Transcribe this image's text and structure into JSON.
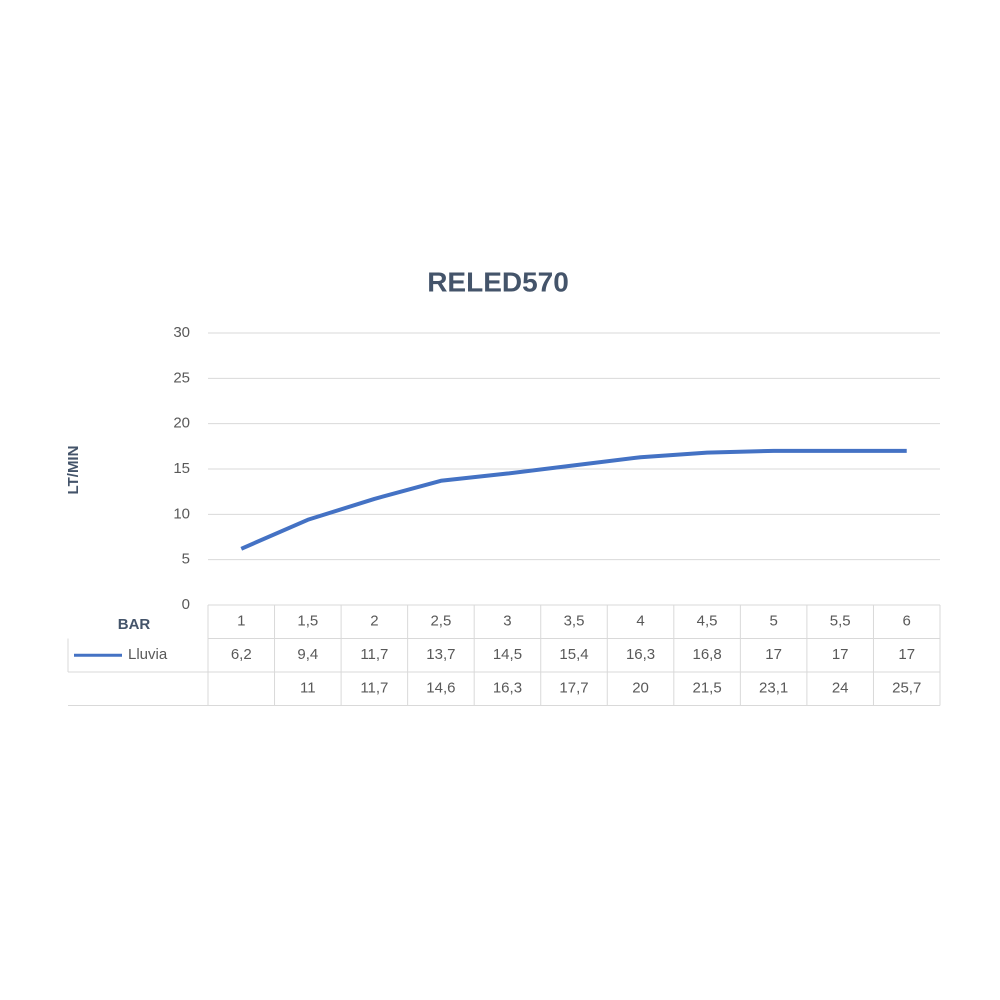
{
  "chart_data": {
    "type": "line",
    "title": "RELED570",
    "y_label": "LT/MIN",
    "x_label": "BAR",
    "categories": [
      "1",
      "1,5",
      "2",
      "2,5",
      "3",
      "3,5",
      "4",
      "4,5",
      "5",
      "5,5",
      "6"
    ],
    "series": [
      {
        "name": "Lluvia",
        "color": "#4472c4",
        "values": [
          6.2,
          9.4,
          11.7,
          13.7,
          14.5,
          15.4,
          16.3,
          16.8,
          17,
          17,
          17
        ],
        "value_labels": [
          "6,2",
          "9,4",
          "11,7",
          "13,7",
          "14,5",
          "15,4",
          "16,3",
          "16,8",
          "17",
          "17",
          "17"
        ]
      },
      {
        "values": [
          null,
          11,
          11.7,
          14.6,
          16.3,
          17.7,
          20,
          21.5,
          23.1,
          24,
          25.7
        ],
        "value_labels": [
          null,
          "11",
          "11,7",
          "14,6",
          "16,3",
          "17,7",
          "20",
          "21,5",
          "23,1",
          "24",
          "25,7"
        ]
      }
    ],
    "ylim": [
      0,
      30
    ],
    "yticks": [
      0,
      5,
      10,
      15,
      20,
      25,
      30
    ],
    "grid": true,
    "data_table": true
  }
}
